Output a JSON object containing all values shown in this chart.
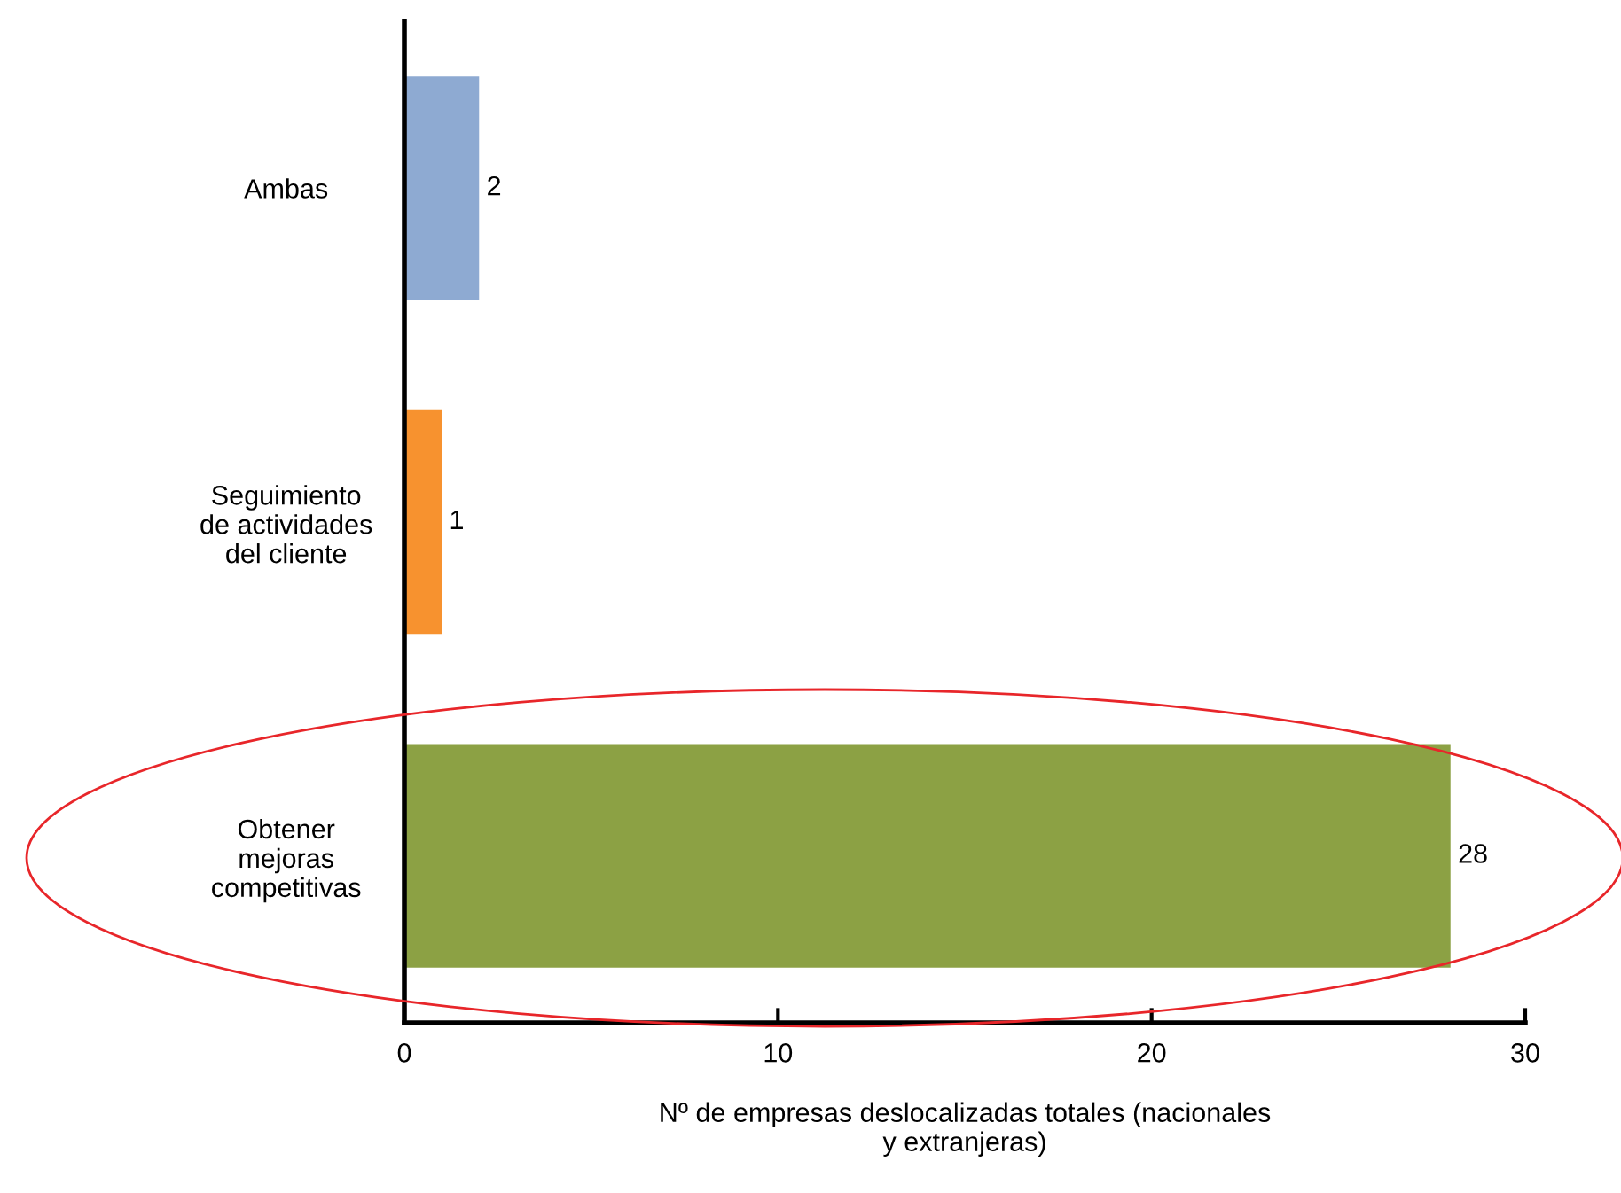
{
  "chart_data": {
    "type": "bar",
    "orientation": "horizontal",
    "categories": [
      "Ambas",
      "Seguimiento\nde actividades\ndel cliente",
      "Obtener\nmejoras\ncompetitivas"
    ],
    "values": [
      2,
      1,
      28
    ],
    "colors": [
      "#8eaad2",
      "#f7922f",
      "#8ca144"
    ],
    "xlim": [
      0,
      30
    ],
    "xticks": [
      0,
      10,
      20,
      30
    ],
    "xlabel": "Nº de empresas deslocalizadas totales (nacionales\ny extranjeras)",
    "data_labels": true,
    "grid": false,
    "legend": false
  }
}
